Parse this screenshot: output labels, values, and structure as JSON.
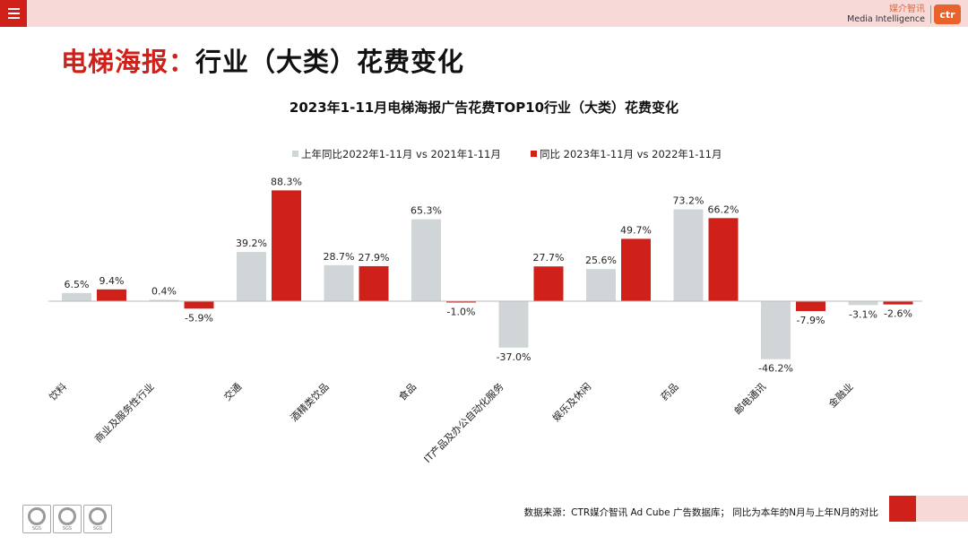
{
  "header": {
    "brand_cn": "媒介智讯",
    "brand_en": "Media Intelligence",
    "logo_text": "ctr"
  },
  "page_title": {
    "part1": "电梯海报：",
    "part2": "行业（大类）花费变化"
  },
  "footer": {
    "source_note": "数据来源：CTR媒介智讯 Ad Cube 广告数据库； 同比为本年的N月与上年N月的对比",
    "badges": [
      "SGS",
      "SGS",
      "SGS"
    ]
  },
  "colors": {
    "accent_red": "#d0201a",
    "prior_gray": "#d0d5d8",
    "topbar_pink": "#f7d9d8"
  },
  "chart_data": {
    "type": "bar",
    "title": "2023年1-11月电梯海报广告花费TOP10行业（大类）花费变化",
    "categories": [
      "饮料",
      "商业及服务性行业",
      "交通",
      "酒精类饮品",
      "食品",
      "IT产品及办公自动化服务",
      "娱乐及休闲",
      "药品",
      "邮电通讯",
      "金融业"
    ],
    "series": [
      {
        "name": "上年同比2022年1-11月 vs 2021年1-11月",
        "color": "#d0d5d8",
        "values": [
          6.5,
          0.4,
          39.2,
          28.7,
          65.3,
          -37.0,
          25.6,
          73.2,
          -46.2,
          -3.1
        ],
        "labels": [
          "6.5%",
          "0.4%",
          "39.2%",
          "28.7%",
          "65.3%",
          "-37.0%",
          "25.6%",
          "73.2%",
          "-46.2%",
          "-3.1%"
        ]
      },
      {
        "name": "同比 2023年1-11月 vs 2022年1-11月",
        "color": "#d0201a",
        "values": [
          9.4,
          -5.9,
          88.3,
          27.9,
          -1.0,
          27.7,
          49.7,
          66.2,
          -7.9,
          -2.6
        ],
        "labels": [
          "9.4%",
          "-5.9%",
          "88.3%",
          "27.9%",
          "-1.0%",
          "27.7%",
          "49.7%",
          "66.2%",
          "-7.9%",
          "-2.6%"
        ]
      }
    ],
    "legend_position": "top-center",
    "grid": false
  }
}
